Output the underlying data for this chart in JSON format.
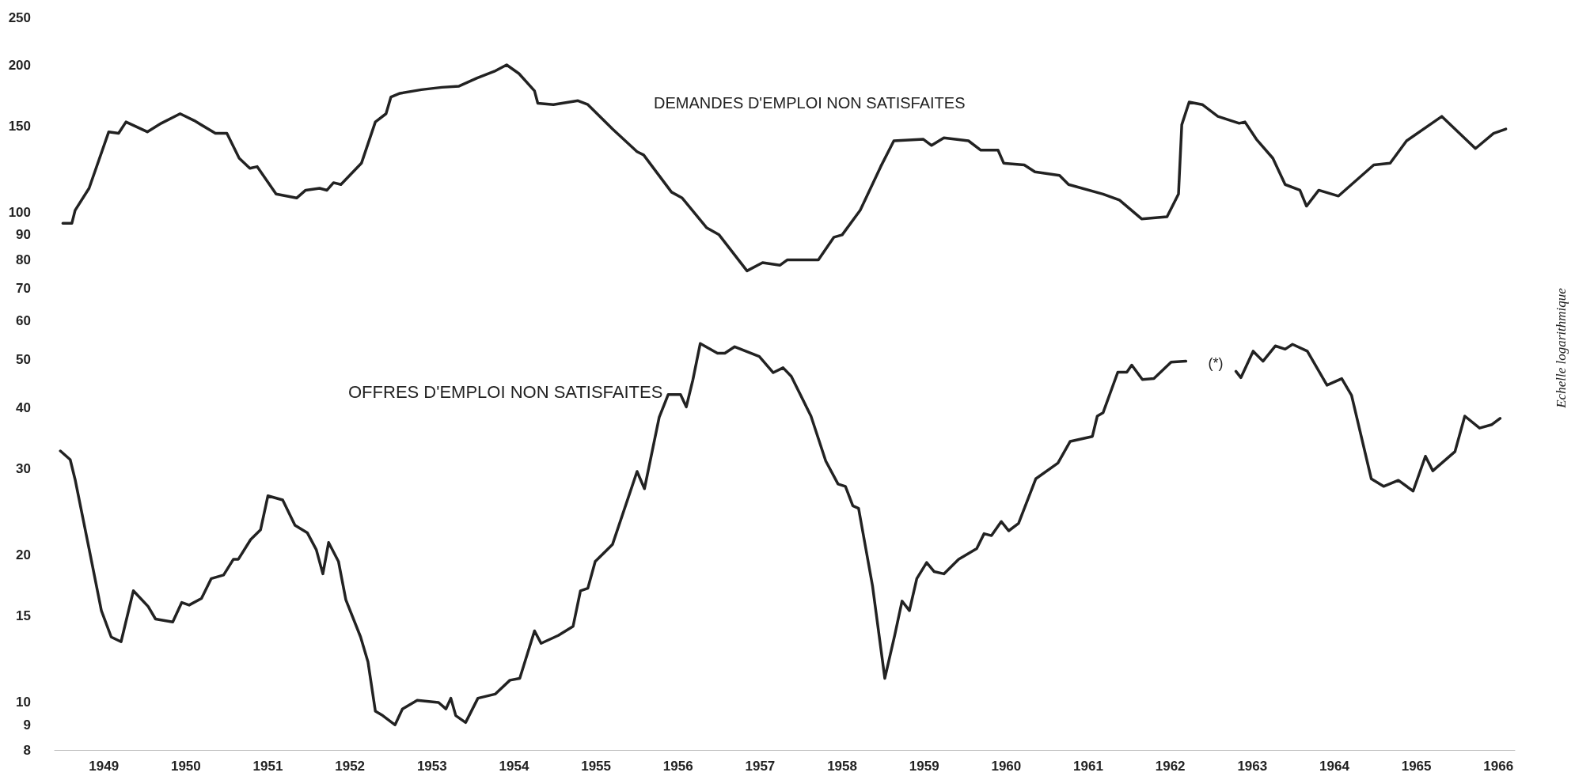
{
  "chart_data": {
    "type": "line",
    "log": "y",
    "ylabel": "Echelle logarithmique",
    "ylim": [
      8,
      250
    ],
    "yticks": [
      8,
      9,
      10,
      15,
      20,
      30,
      40,
      50,
      60,
      70,
      80,
      90,
      100,
      150,
      200,
      250
    ],
    "xlim": [
      1948.4,
      1966.2
    ],
    "xticks": [
      1949,
      1950,
      1951,
      1952,
      1953,
      1954,
      1955,
      1956,
      1957,
      1958,
      1959,
      1960,
      1961,
      1962,
      1963,
      1964,
      1965,
      1966
    ],
    "grid": false,
    "annotations": [
      "(*)"
    ],
    "series": [
      {
        "name": "DEMANDES D'EMPLOI NON SATISFAITES",
        "color": "#222222",
        "x": [
          1948.5,
          1948.61,
          1948.65,
          1948.82,
          1949.06,
          1949.18,
          1949.27,
          1949.53,
          1949.7,
          1949.93,
          1950.1,
          1950.36,
          1950.5,
          1950.65,
          1950.78,
          1950.87,
          1951.1,
          1951.35,
          1951.46,
          1951.63,
          1951.72,
          1951.8,
          1951.89,
          1952.14,
          1952.31,
          1952.44,
          1952.5,
          1952.61,
          1952.87,
          1953.12,
          1953.33,
          1953.55,
          1953.76,
          1953.91,
          1954.06,
          1954.25,
          1954.29,
          1954.48,
          1954.78,
          1954.9,
          1955.2,
          1955.5,
          1955.58,
          1955.92,
          1956.05,
          1956.35,
          1956.5,
          1956.84,
          1957.03,
          1957.24,
          1957.33,
          1957.71,
          1957.9,
          1958.0,
          1958.22,
          1958.47,
          1958.63,
          1958.99,
          1959.09,
          1959.24,
          1959.54,
          1959.69,
          1959.9,
          1959.97,
          1960.22,
          1960.35,
          1960.65,
          1960.76,
          1961.18,
          1961.38,
          1961.65,
          1961.96,
          1962.1,
          1962.14,
          1962.23,
          1962.39,
          1962.58,
          1962.84,
          1962.91,
          1963.05,
          1963.25,
          1963.4,
          1963.58,
          1963.66,
          1963.81,
          1964.05,
          1964.48,
          1964.68,
          1964.88,
          1965.31,
          1965.72,
          1965.94,
          1966.09
        ],
        "values": [
          95,
          95,
          101,
          112,
          146,
          145,
          153,
          146,
          152,
          159,
          154,
          145,
          145,
          129,
          123,
          124,
          109,
          107,
          111,
          112,
          111,
          115,
          114,
          126,
          153,
          159,
          172,
          175,
          178,
          180,
          181,
          188,
          194,
          200,
          192,
          177,
          167,
          166,
          169,
          166,
          148,
          133,
          131,
          110,
          107,
          93,
          90,
          76,
          79,
          78,
          80,
          80,
          89,
          90,
          101,
          124,
          140,
          141,
          137,
          142,
          140,
          134,
          134,
          126,
          125,
          121,
          119,
          114,
          109,
          106,
          97,
          98,
          109,
          151,
          168,
          166,
          157,
          152,
          153,
          141,
          129,
          114,
          111,
          103,
          111,
          108,
          125,
          126,
          140,
          157,
          135,
          145,
          148
        ]
      },
      {
        "name": "OFFRES D'EMPLOI NON SATISFAITES",
        "color": "#222222",
        "x": [
          1948.47,
          1948.59,
          1948.65,
          1948.82,
          1948.97,
          1949.09,
          1949.21,
          1949.36,
          1949.54,
          1949.63,
          1949.84,
          1949.95,
          1950.04,
          1950.19,
          1950.31,
          1950.46,
          1950.58,
          1950.64,
          1950.79,
          1950.91,
          1951.0,
          1951.18,
          1951.33,
          1951.48,
          1951.59,
          1951.67,
          1951.74,
          1951.86,
          1951.95,
          1952.13,
          1952.22,
          1952.31,
          1952.4,
          1952.55,
          1952.64,
          1952.82,
          1953.08,
          1953.17,
          1953.23,
          1953.29,
          1953.41,
          1953.56,
          1953.77,
          1953.95,
          1954.07,
          1954.25,
          1954.33,
          1954.54,
          1954.72,
          1954.81,
          1954.9,
          1954.99,
          1955.2,
          1955.5,
          1955.59,
          1955.77,
          1955.88,
          1956.03,
          1956.1,
          1956.18,
          1956.27,
          1956.48,
          1956.57,
          1956.69,
          1956.99,
          1957.16,
          1957.28,
          1957.38,
          1957.62,
          1957.8,
          1957.95,
          1958.04,
          1958.13,
          1958.2,
          1958.37,
          1958.52,
          1958.64,
          1958.73,
          1958.82,
          1958.91,
          1959.03,
          1959.12,
          1959.24,
          1959.42,
          1959.64,
          1959.73,
          1959.82,
          1959.94,
          1960.03,
          1960.15,
          1960.36,
          1960.63,
          1960.78,
          1961.05,
          1961.11,
          1961.18,
          1961.36,
          1961.47,
          1961.53,
          1961.66,
          1961.8,
          1962.01,
          1962.19,
          1962.5,
          1962.8,
          1962.86,
          1963.01,
          1963.13,
          1963.28,
          1963.4,
          1963.49,
          1963.67,
          1963.91,
          1964.09,
          1964.21,
          1964.45,
          1964.6,
          1964.78,
          1964.96,
          1965.11,
          1965.2,
          1965.47,
          1965.59,
          1965.77,
          1965.92,
          1966.02
        ],
        "values": [
          32.6,
          31.3,
          28.5,
          20.6,
          15.4,
          13.6,
          13.3,
          16.9,
          15.7,
          14.8,
          14.6,
          16.0,
          15.8,
          16.3,
          17.9,
          18.2,
          19.6,
          19.6,
          21.5,
          22.5,
          26.4,
          25.9,
          23.0,
          22.2,
          20.5,
          18.3,
          21.2,
          19.4,
          16.2,
          13.6,
          12.1,
          9.6,
          9.4,
          9.0,
          9.7,
          10.1,
          10.0,
          9.7,
          10.2,
          9.4,
          9.1,
          10.2,
          10.4,
          11.1,
          11.2,
          14.0,
          13.2,
          13.7,
          14.3,
          16.9,
          17.1,
          19.4,
          21.0,
          29.6,
          27.3,
          38.2,
          42.5,
          42.5,
          40.1,
          45.5,
          54.0,
          51.6,
          51.6,
          53.2,
          50.8,
          47.1,
          48.2,
          46.3,
          38.4,
          31.1,
          27.9,
          27.6,
          25.2,
          24.9,
          17.3,
          11.2,
          13.7,
          16.1,
          15.4,
          17.9,
          19.3,
          18.5,
          18.3,
          19.6,
          20.6,
          22.1,
          21.9,
          23.4,
          22.4,
          23.2,
          28.6,
          30.8,
          34.1,
          34.9,
          38.4,
          39.0,
          47.2,
          47.2,
          48.8,
          45.6,
          45.8,
          49.5,
          49.7,
          null,
          47.4,
          46.0,
          52.1,
          49.7,
          53.4,
          52.6,
          53.8,
          52.1,
          44.4,
          45.8,
          42.3,
          28.6,
          27.6,
          28.4,
          27.0,
          31.8,
          29.7,
          32.5,
          38.4,
          36.3,
          36.9,
          38.0
        ]
      }
    ]
  }
}
